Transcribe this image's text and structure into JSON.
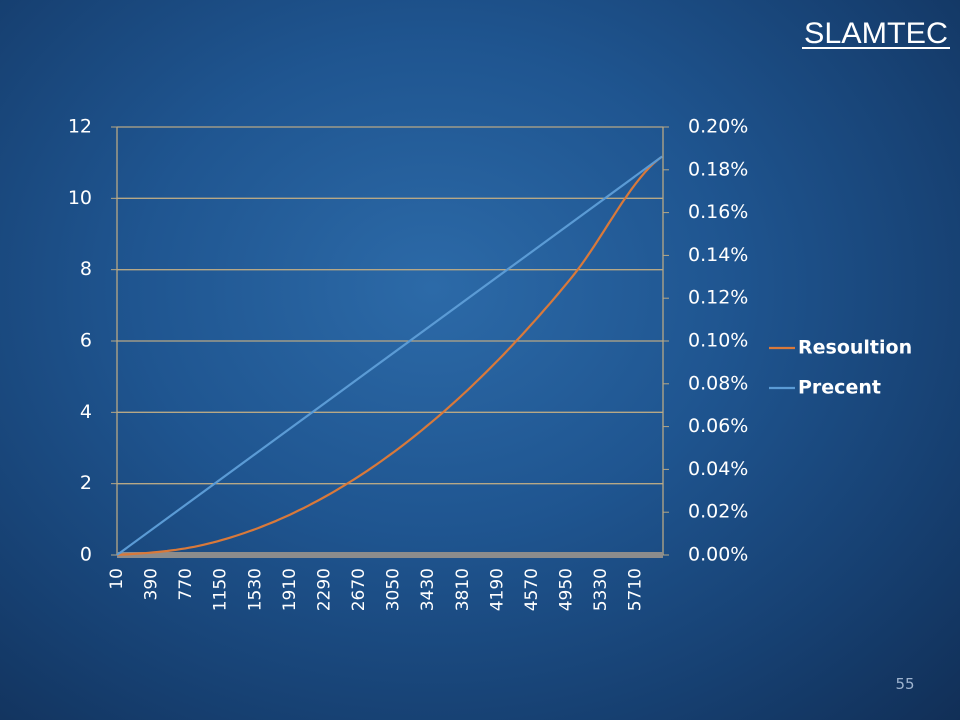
{
  "logo": {
    "text": "SLAMTEC"
  },
  "slide_number": "55",
  "chart_data": {
    "type": "line",
    "x_start": 10,
    "x_step": 10,
    "x_end": 6010,
    "x_tick_labels": [
      "10",
      "390",
      "770",
      "1150",
      "1530",
      "1910",
      "2290",
      "2670",
      "3050",
      "3430",
      "3810",
      "4190",
      "4570",
      "4950",
      "5330",
      "5710"
    ],
    "y_left": {
      "range": [
        0,
        12
      ],
      "ticks": [
        "0",
        "2",
        "4",
        "6",
        "8",
        "10",
        "12"
      ]
    },
    "y_right": {
      "range": [
        0,
        0.2
      ],
      "ticks": [
        "0.00%",
        "0.02%",
        "0.04%",
        "0.06%",
        "0.08%",
        "0.10%",
        "0.12%",
        "0.14%",
        "0.16%",
        "0.18%",
        "0.20%"
      ]
    },
    "grid": "horizontal",
    "legend_position": "right",
    "series": [
      {
        "name": "Resoultion",
        "axis": "left",
        "color": "#d9793a",
        "x": [
          10,
          1000,
          2000,
          3000,
          4000,
          5000,
          6000
        ],
        "values": [
          0.0,
          0.31,
          1.24,
          2.79,
          4.96,
          7.76,
          11.17
        ]
      },
      {
        "name": "Precent",
        "axis": "right",
        "color": "#5b9bd5",
        "x": [
          10,
          6000
        ],
        "values": [
          0.0,
          0.1862
        ]
      }
    ]
  }
}
